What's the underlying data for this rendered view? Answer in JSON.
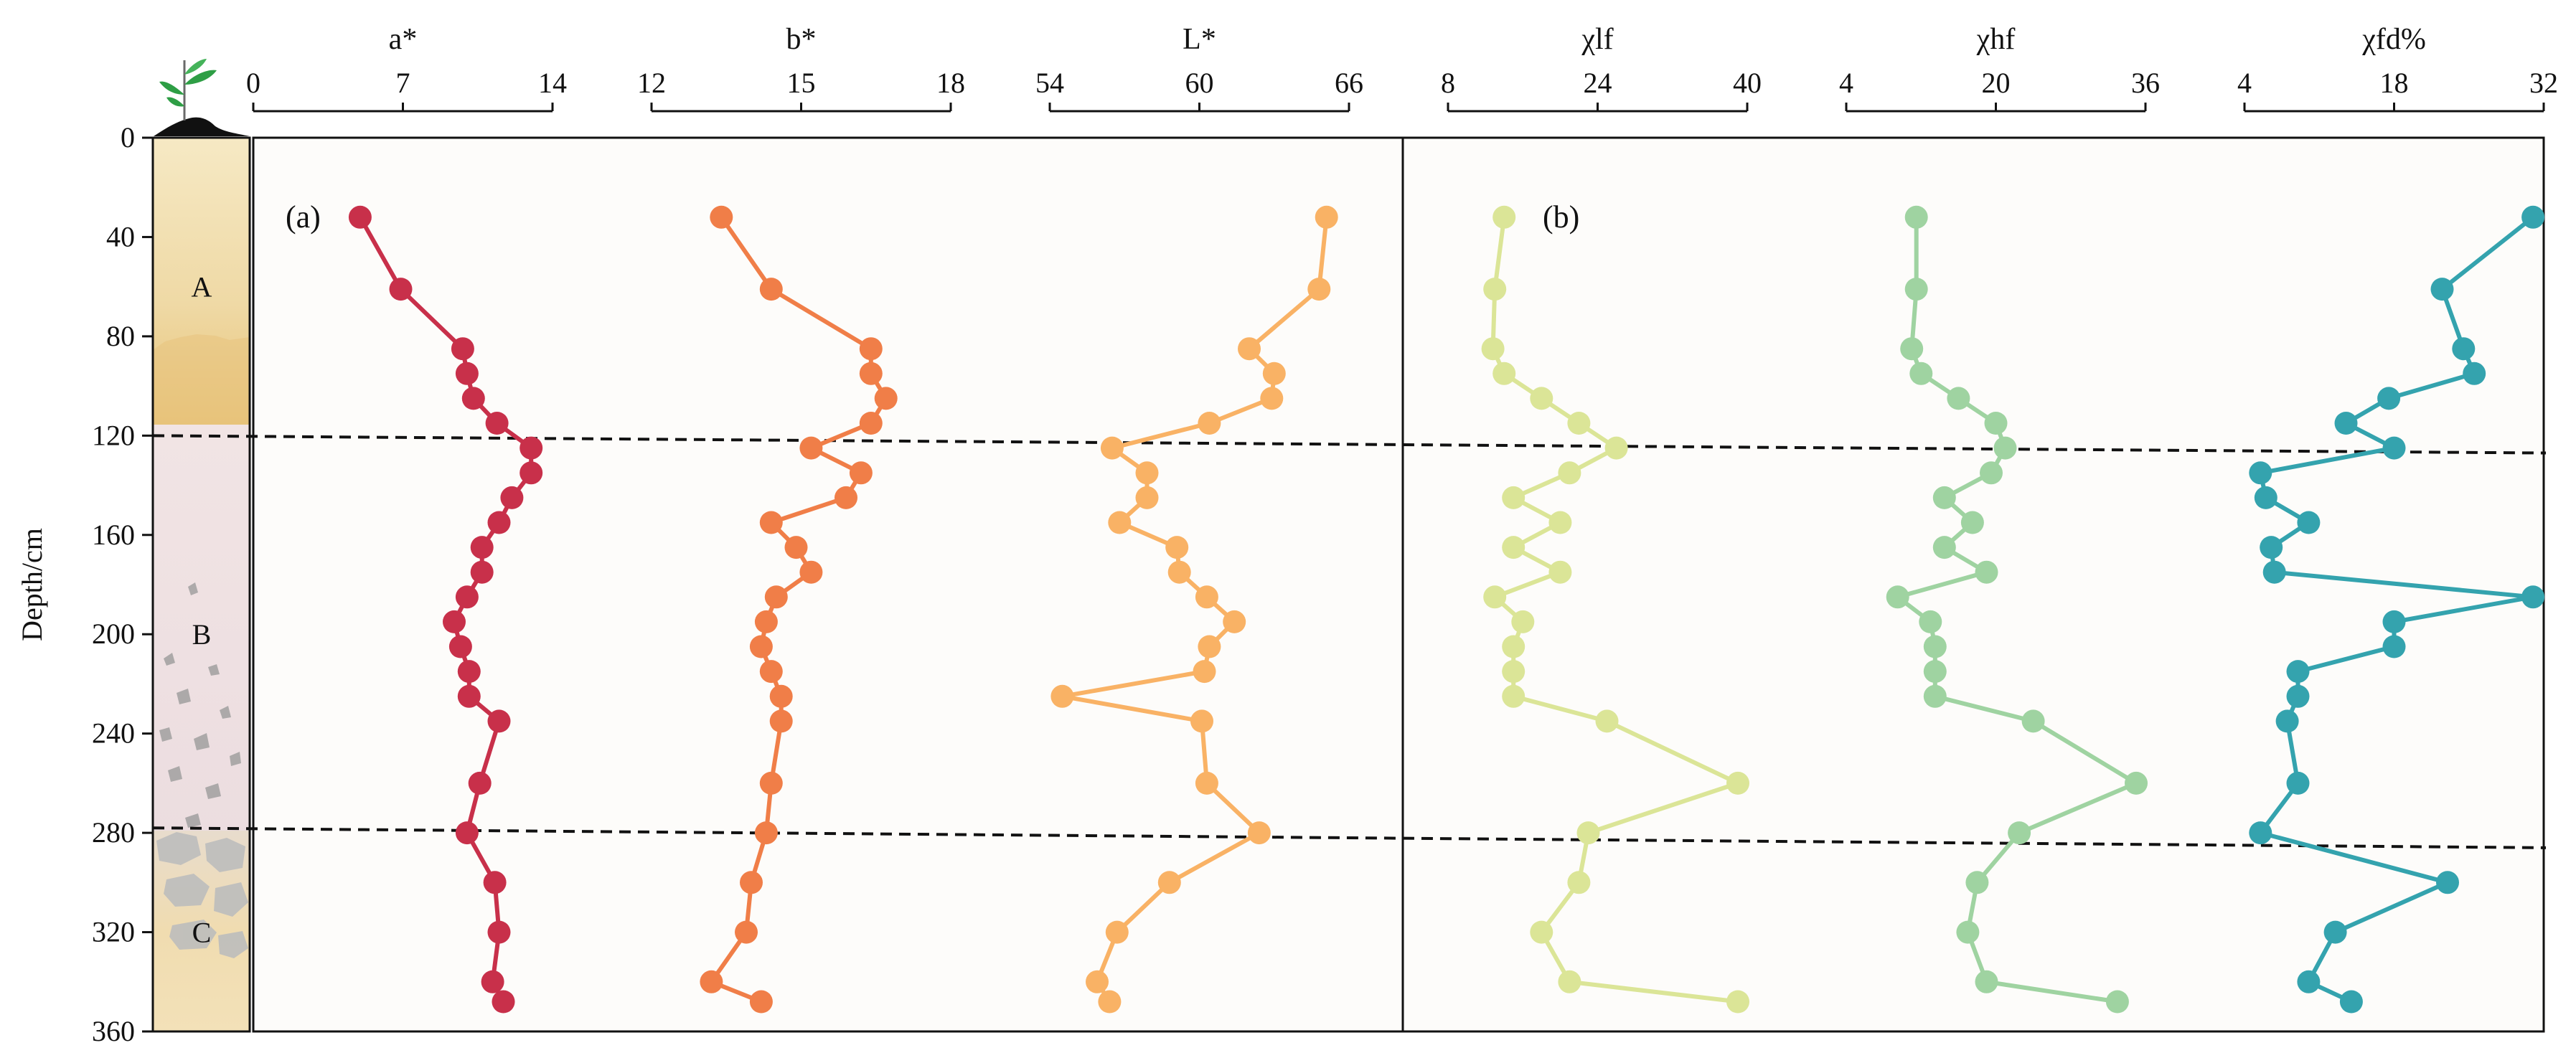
{
  "chart_data": {
    "type": "line",
    "title": "",
    "ylabel": "Depth/cm",
    "ylim": [
      0,
      360
    ],
    "yticks": [
      0,
      40,
      80,
      120,
      160,
      200,
      240,
      280,
      320,
      360
    ],
    "depths": [
      32,
      61,
      85,
      95,
      105,
      115,
      125,
      135,
      145,
      155,
      165,
      175,
      185,
      195,
      205,
      215,
      225,
      235,
      260,
      280,
      300,
      320,
      340,
      348
    ],
    "panels": [
      {
        "label": "(a)",
        "series": [
          {
            "name": "a*",
            "xlabel": "a*",
            "xlim": [
              0,
              14
            ],
            "ticks": [
              0,
              7,
              14
            ],
            "color": "#c8304a",
            "values": [
              5.0,
              6.9,
              9.8,
              10.0,
              10.3,
              11.4,
              13.0,
              13.0,
              12.1,
              11.5,
              10.7,
              10.7,
              10.0,
              9.4,
              9.7,
              10.1,
              10.1,
              11.5,
              10.6,
              10.0,
              11.3,
              11.5,
              11.2,
              11.7
            ]
          },
          {
            "name": "b*",
            "xlabel": "b*",
            "xlim": [
              12,
              18
            ],
            "ticks": [
              12,
              15,
              18
            ],
            "color": "#f07e48",
            "values": [
              13.4,
              14.4,
              16.4,
              16.4,
              16.7,
              16.4,
              15.2,
              16.2,
              15.9,
              14.4,
              14.9,
              15.2,
              14.5,
              14.3,
              14.2,
              14.4,
              14.6,
              14.6,
              14.4,
              14.3,
              14.0,
              13.9,
              13.2,
              14.2
            ]
          },
          {
            "name": "L*",
            "xlabel": "L*",
            "xlim": [
              54,
              66
            ],
            "ticks": [
              54,
              60,
              66
            ],
            "color": "#f9b265",
            "values": [
              65.1,
              64.8,
              62.0,
              63.0,
              62.9,
              60.4,
              56.5,
              57.9,
              57.9,
              56.8,
              59.1,
              59.2,
              60.3,
              61.4,
              60.4,
              60.2,
              54.5,
              60.1,
              60.3,
              62.4,
              58.8,
              56.7,
              55.9,
              56.4
            ]
          }
        ]
      },
      {
        "label": "(b)",
        "series": [
          {
            "name": "χlf",
            "xlabel": "χlf",
            "xlim": [
              8,
              40
            ],
            "ticks": [
              8,
              24,
              40
            ],
            "color": "#dbe597",
            "values": [
              14.0,
              13.0,
              12.8,
              14.0,
              18.0,
              22.0,
              26.0,
              21.0,
              15.0,
              20.0,
              15.0,
              20.0,
              13.0,
              16.0,
              15.0,
              15.0,
              15.0,
              25.0,
              39.0,
              23.0,
              22.0,
              18.0,
              21.0,
              39.0
            ]
          },
          {
            "name": "χhf",
            "xlabel": "χhf",
            "xlim": [
              4,
              36
            ],
            "ticks": [
              4,
              20,
              36
            ],
            "color": "#9fd3a1",
            "values": [
              11.5,
              11.5,
              11.0,
              12.0,
              16.0,
              20.0,
              21.0,
              19.5,
              14.5,
              17.5,
              14.5,
              19.0,
              9.5,
              13.0,
              13.5,
              13.5,
              13.5,
              24.0,
              35.0,
              22.5,
              18.0,
              17.0,
              19.0,
              33.0
            ]
          },
          {
            "name": "χfd%",
            "xlabel": "χfd%",
            "xlim": [
              4,
              32
            ],
            "ticks": [
              4,
              18,
              32
            ],
            "color": "#34a3ae",
            "values": [
              31.0,
              22.5,
              24.5,
              25.5,
              17.5,
              13.5,
              18.0,
              5.5,
              6.0,
              10.0,
              6.5,
              6.8,
              31.0,
              18.0,
              18.0,
              9.0,
              9.0,
              8.0,
              9.0,
              5.5,
              23.0,
              12.5,
              10.0,
              14.0
            ]
          }
        ]
      }
    ],
    "profile": {
      "horizons": [
        "A",
        "B",
        "C"
      ]
    },
    "boundary_lines": [
      {
        "name": "A-B boundary",
        "from_depth": 120,
        "to_depth": 127
      },
      {
        "name": "B-C boundary",
        "from_depth": 278,
        "to_depth": 286
      }
    ]
  }
}
